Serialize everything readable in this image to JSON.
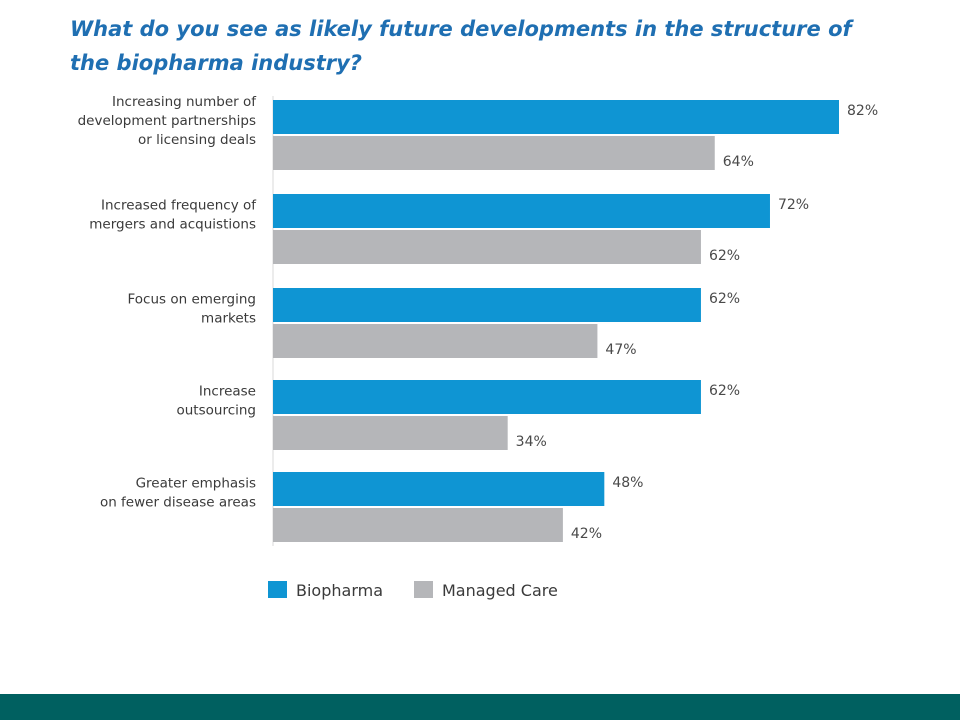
{
  "chart_data": {
    "type": "bar",
    "orientation": "horizontal",
    "title": "What do you see as likely future developments in the structure of the biopharma industry?",
    "categories": [
      [
        "Increasing number of",
        "development partnerships",
        "or licensing deals"
      ],
      [
        "Increased frequency of",
        "mergers and acquistions"
      ],
      [
        "Focus on emerging",
        "markets"
      ],
      [
        "Increase",
        "outsourcing"
      ],
      [
        "Greater emphasis",
        "on fewer disease areas"
      ]
    ],
    "series": [
      {
        "name": "Biopharma",
        "values": [
          82,
          72,
          62,
          62,
          48
        ],
        "color": "#0f95d3"
      },
      {
        "name": "Managed Care",
        "values": [
          64,
          62,
          47,
          34,
          42
        ],
        "color": "#b5b6b9"
      }
    ],
    "value_suffix": "%",
    "xlim": [
      0,
      100
    ],
    "grid": false,
    "legend": "bottom",
    "xlabel": "",
    "ylabel": ""
  },
  "footer": {
    "color": "#006060"
  }
}
